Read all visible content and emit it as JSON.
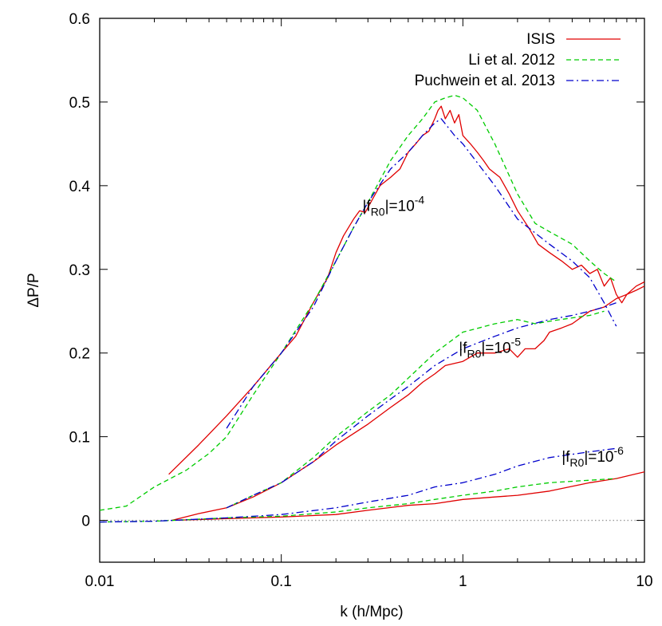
{
  "chart_data": {
    "type": "line",
    "xlabel": "k  (h/Mpc)",
    "ylabel": "ΔP/P",
    "xscale": "log",
    "xlim": [
      0.01,
      10
    ],
    "ylim": [
      -0.05,
      0.6
    ],
    "x_ticks": [
      {
        "value": 0.01,
        "label": "0.01"
      },
      {
        "value": 0.1,
        "label": "0.1"
      },
      {
        "value": 1,
        "label": "1"
      },
      {
        "value": 10,
        "label": "10"
      }
    ],
    "y_ticks": [
      {
        "value": 0,
        "label": "0"
      },
      {
        "value": 0.1,
        "label": "0.1"
      },
      {
        "value": 0.2,
        "label": "0.2"
      },
      {
        "value": 0.3,
        "label": "0.3"
      },
      {
        "value": 0.4,
        "label": "0.4"
      },
      {
        "value": 0.5,
        "label": "0.5"
      },
      {
        "value": 0.6,
        "label": "0.6"
      }
    ],
    "grid": false,
    "legend_position": "top-right",
    "zero_line": {
      "y": 0,
      "color": "#999999",
      "style": "dotted"
    },
    "series": [
      {
        "name": "ISIS",
        "group": "1e-4",
        "color": "#e00000",
        "dash": "solid",
        "points": [
          [
            0.024,
            0.055
          ],
          [
            0.035,
            0.09
          ],
          [
            0.05,
            0.125
          ],
          [
            0.07,
            0.16
          ],
          [
            0.1,
            0.2
          ],
          [
            0.12,
            0.22
          ],
          [
            0.15,
            0.26
          ],
          [
            0.18,
            0.29
          ],
          [
            0.2,
            0.32
          ],
          [
            0.22,
            0.34
          ],
          [
            0.25,
            0.36
          ],
          [
            0.27,
            0.37
          ],
          [
            0.29,
            0.368
          ],
          [
            0.32,
            0.385
          ],
          [
            0.35,
            0.4
          ],
          [
            0.4,
            0.41
          ],
          [
            0.45,
            0.42
          ],
          [
            0.5,
            0.44
          ],
          [
            0.55,
            0.45
          ],
          [
            0.6,
            0.46
          ],
          [
            0.65,
            0.465
          ],
          [
            0.7,
            0.48
          ],
          [
            0.73,
            0.49
          ],
          [
            0.76,
            0.495
          ],
          [
            0.8,
            0.48
          ],
          [
            0.85,
            0.49
          ],
          [
            0.9,
            0.475
          ],
          [
            0.95,
            0.485
          ],
          [
            1.0,
            0.46
          ],
          [
            1.1,
            0.45
          ],
          [
            1.2,
            0.44
          ],
          [
            1.3,
            0.43
          ],
          [
            1.4,
            0.42
          ],
          [
            1.6,
            0.41
          ],
          [
            1.8,
            0.39
          ],
          [
            2.0,
            0.37
          ],
          [
            2.3,
            0.35
          ],
          [
            2.6,
            0.33
          ],
          [
            3.0,
            0.32
          ],
          [
            3.5,
            0.31
          ],
          [
            4.0,
            0.3
          ],
          [
            4.5,
            0.305
          ],
          [
            5.0,
            0.295
          ],
          [
            5.5,
            0.3
          ],
          [
            6.0,
            0.28
          ],
          [
            6.5,
            0.29
          ],
          [
            7.0,
            0.27
          ],
          [
            7.5,
            0.26
          ],
          [
            8.0,
            0.27
          ],
          [
            9.0,
            0.28
          ],
          [
            10.0,
            0.285
          ]
        ]
      },
      {
        "name": "Li et al. 2012",
        "group": "1e-4",
        "color": "#00cc00",
        "dash": "dashed",
        "points": [
          [
            0.01,
            0.012
          ],
          [
            0.014,
            0.017
          ],
          [
            0.02,
            0.04
          ],
          [
            0.03,
            0.06
          ],
          [
            0.04,
            0.08
          ],
          [
            0.05,
            0.1
          ],
          [
            0.07,
            0.15
          ],
          [
            0.1,
            0.2
          ],
          [
            0.15,
            0.26
          ],
          [
            0.2,
            0.31
          ],
          [
            0.25,
            0.35
          ],
          [
            0.3,
            0.38
          ],
          [
            0.4,
            0.43
          ],
          [
            0.5,
            0.46
          ],
          [
            0.6,
            0.48
          ],
          [
            0.7,
            0.5
          ],
          [
            0.8,
            0.505
          ],
          [
            0.9,
            0.508
          ],
          [
            1.0,
            0.505
          ],
          [
            1.2,
            0.49
          ],
          [
            1.5,
            0.45
          ],
          [
            2.0,
            0.39
          ],
          [
            2.5,
            0.355
          ],
          [
            3.0,
            0.345
          ],
          [
            4.0,
            0.33
          ],
          [
            5.0,
            0.31
          ],
          [
            6.0,
            0.295
          ],
          [
            7.0,
            0.285
          ]
        ]
      },
      {
        "name": "Puchwein et al. 2013",
        "group": "1e-4",
        "color": "#0000cc",
        "dash": "dashdot",
        "points": [
          [
            0.05,
            0.11
          ],
          [
            0.07,
            0.16
          ],
          [
            0.1,
            0.2
          ],
          [
            0.15,
            0.255
          ],
          [
            0.2,
            0.31
          ],
          [
            0.25,
            0.35
          ],
          [
            0.3,
            0.38
          ],
          [
            0.4,
            0.42
          ],
          [
            0.5,
            0.44
          ],
          [
            0.6,
            0.46
          ],
          [
            0.7,
            0.475
          ],
          [
            0.76,
            0.48
          ],
          [
            0.9,
            0.46
          ],
          [
            1.0,
            0.45
          ],
          [
            1.5,
            0.4
          ],
          [
            2.0,
            0.36
          ],
          [
            3.0,
            0.33
          ],
          [
            4.0,
            0.31
          ],
          [
            5.0,
            0.29
          ],
          [
            6.0,
            0.26
          ],
          [
            7.0,
            0.232
          ]
        ]
      },
      {
        "name": "ISIS",
        "group": "1e-5",
        "color": "#e00000",
        "dash": "solid",
        "points": [
          [
            0.025,
            0.0
          ],
          [
            0.035,
            0.008
          ],
          [
            0.05,
            0.015
          ],
          [
            0.07,
            0.028
          ],
          [
            0.1,
            0.045
          ],
          [
            0.15,
            0.07
          ],
          [
            0.2,
            0.09
          ],
          [
            0.3,
            0.115
          ],
          [
            0.4,
            0.135
          ],
          [
            0.5,
            0.15
          ],
          [
            0.6,
            0.165
          ],
          [
            0.7,
            0.175
          ],
          [
            0.8,
            0.185
          ],
          [
            1.0,
            0.19
          ],
          [
            1.2,
            0.2
          ],
          [
            1.5,
            0.2
          ],
          [
            1.8,
            0.205
          ],
          [
            2.0,
            0.195
          ],
          [
            2.2,
            0.205
          ],
          [
            2.5,
            0.205
          ],
          [
            2.8,
            0.215
          ],
          [
            3.0,
            0.225
          ],
          [
            3.5,
            0.23
          ],
          [
            4.0,
            0.235
          ],
          [
            5.0,
            0.25
          ],
          [
            6.0,
            0.255
          ],
          [
            7.0,
            0.265
          ],
          [
            8.0,
            0.27
          ],
          [
            9.0,
            0.275
          ],
          [
            10.0,
            0.28
          ]
        ]
      },
      {
        "name": "Li et al. 2012",
        "group": "1e-5",
        "color": "#00cc00",
        "dash": "dashed",
        "points": [
          [
            0.05,
            0.015
          ],
          [
            0.07,
            0.03
          ],
          [
            0.1,
            0.045
          ],
          [
            0.15,
            0.075
          ],
          [
            0.2,
            0.1
          ],
          [
            0.3,
            0.13
          ],
          [
            0.4,
            0.15
          ],
          [
            0.5,
            0.17
          ],
          [
            0.7,
            0.2
          ],
          [
            1.0,
            0.225
          ],
          [
            1.5,
            0.235
          ],
          [
            2.0,
            0.24
          ],
          [
            2.5,
            0.235
          ],
          [
            3.0,
            0.238
          ],
          [
            4.0,
            0.242
          ],
          [
            5.0,
            0.245
          ],
          [
            6.0,
            0.25
          ]
        ]
      },
      {
        "name": "Puchwein et al. 2013",
        "group": "1e-5",
        "color": "#0000cc",
        "dash": "dashdot",
        "points": [
          [
            0.05,
            0.015
          ],
          [
            0.07,
            0.03
          ],
          [
            0.1,
            0.045
          ],
          [
            0.15,
            0.07
          ],
          [
            0.2,
            0.095
          ],
          [
            0.3,
            0.125
          ],
          [
            0.4,
            0.145
          ],
          [
            0.5,
            0.16
          ],
          [
            0.7,
            0.185
          ],
          [
            1.0,
            0.205
          ],
          [
            1.5,
            0.22
          ],
          [
            2.0,
            0.23
          ],
          [
            3.0,
            0.24
          ],
          [
            4.0,
            0.245
          ],
          [
            5.0,
            0.25
          ],
          [
            6.0,
            0.255
          ],
          [
            7.0,
            0.26
          ]
        ]
      },
      {
        "name": "ISIS",
        "group": "1e-6",
        "color": "#e00000",
        "dash": "solid",
        "points": [
          [
            0.025,
            0.0
          ],
          [
            0.05,
            0.002
          ],
          [
            0.1,
            0.004
          ],
          [
            0.2,
            0.007
          ],
          [
            0.3,
            0.012
          ],
          [
            0.5,
            0.018
          ],
          [
            0.7,
            0.02
          ],
          [
            1.0,
            0.025
          ],
          [
            1.5,
            0.028
          ],
          [
            2.0,
            0.03
          ],
          [
            3.0,
            0.035
          ],
          [
            5.0,
            0.045
          ],
          [
            7.0,
            0.05
          ],
          [
            10.0,
            0.058
          ]
        ]
      },
      {
        "name": "Li et al. 2012",
        "group": "1e-6",
        "color": "#00cc00",
        "dash": "dashed",
        "points": [
          [
            0.01,
            -0.002
          ],
          [
            0.02,
            -0.001
          ],
          [
            0.05,
            0.003
          ],
          [
            0.1,
            0.005
          ],
          [
            0.2,
            0.01
          ],
          [
            0.3,
            0.015
          ],
          [
            0.5,
            0.02
          ],
          [
            0.7,
            0.025
          ],
          [
            1.0,
            0.03
          ],
          [
            1.5,
            0.035
          ],
          [
            2.0,
            0.04
          ],
          [
            3.0,
            0.045
          ],
          [
            5.0,
            0.048
          ],
          [
            7.0,
            0.05
          ]
        ]
      },
      {
        "name": "Puchwein et al. 2013",
        "group": "1e-6",
        "color": "#0000cc",
        "dash": "dashdot",
        "points": [
          [
            0.01,
            -0.002
          ],
          [
            0.02,
            -0.001
          ],
          [
            0.05,
            0.003
          ],
          [
            0.1,
            0.007
          ],
          [
            0.2,
            0.015
          ],
          [
            0.3,
            0.022
          ],
          [
            0.5,
            0.03
          ],
          [
            0.7,
            0.04
          ],
          [
            1.0,
            0.045
          ],
          [
            1.5,
            0.055
          ],
          [
            2.0,
            0.065
          ],
          [
            3.0,
            0.075
          ],
          [
            5.0,
            0.082
          ],
          [
            7.0,
            0.086
          ]
        ]
      }
    ],
    "legend": [
      {
        "label": "ISIS",
        "color": "#e00000",
        "dash": "solid"
      },
      {
        "label": "Li et al. 2012",
        "color": "#00cc00",
        "dash": "dashed"
      },
      {
        "label": "Puchwein et al. 2013",
        "color": "#0000cc",
        "dash": "dashdot"
      }
    ],
    "annotations": [
      {
        "id": "1e-4",
        "base": "|f",
        "sub": "R0",
        "mid": "|=10",
        "sup": "-4",
        "x": 0.28,
        "y": 0.37
      },
      {
        "id": "1e-5",
        "base": "|f",
        "sub": "R0",
        "mid": "|=10",
        "sup": "-5",
        "x": 0.95,
        "y": 0.2
      },
      {
        "id": "1e-6",
        "base": "|f",
        "sub": "R0",
        "mid": "|=10",
        "sup": "-6",
        "x": 3.5,
        "y": 0.07
      }
    ]
  }
}
